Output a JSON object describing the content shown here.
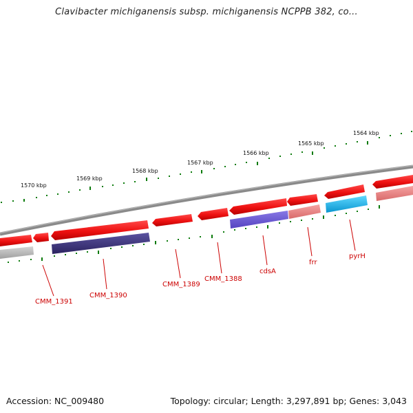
{
  "title": "Clavibacter michiganensis subsp. michiganensis NCPPB 382, co...",
  "footer": {
    "accession": "Accession: NC_009480",
    "summary": "Topology: circular; Length: 3,297,891 bp; Genes: 3,043"
  },
  "colors": {
    "backbone": "#8a8a8a",
    "gene_red": "#ee1111",
    "gene_pink": "#ee8080",
    "gene_navy": "#3a3278",
    "gene_purple": "#6a5ad0",
    "gene_cyan": "#18b4ec",
    "gene_gray": "#b0b0b0",
    "tick": "#0a7a0a",
    "label": "#cc0000"
  },
  "scale_labels": [
    "1570 kbp",
    "1569 kbp",
    "1568 kbp",
    "1567 kbp",
    "1566 kbp",
    "1565 kbp",
    "1564 kbp"
  ],
  "gene_labels": [
    "CMM_1391",
    "CMM_1390",
    "CMM_1389",
    "CMM_1388",
    "cdsA",
    "frr",
    "pyrH"
  ]
}
